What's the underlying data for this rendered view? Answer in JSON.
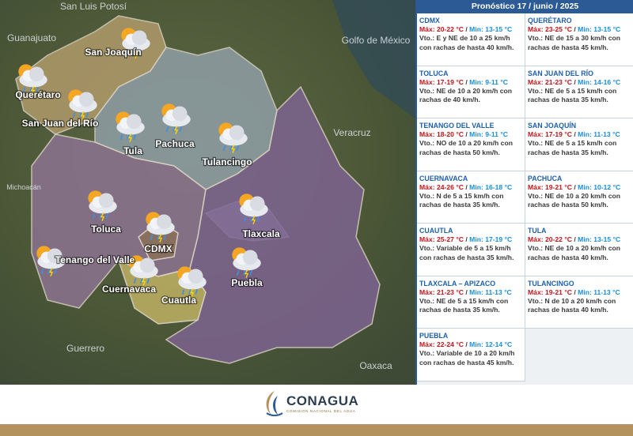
{
  "panel": {
    "title": "Pronóstico 17 / junio / 2025",
    "separator": "/",
    "forecasts": [
      {
        "city": "CDMX",
        "max": "Máx: 20-22 °C",
        "min": "Min: 13-15 °C",
        "wind": "Vto.: E y NE de 10 a 25 km/h con rachas de hasta 40 km/h."
      },
      {
        "city": "QUERÉTARO",
        "max": "Máx: 23-25 °C",
        "min": "Min: 13-15 °C",
        "wind": "Vto.: NE de 15 a 30 km/h con rachas de hasta 45 km/h."
      },
      {
        "city": "TOLUCA",
        "max": "Máx: 17-19 °C",
        "min": "Min: 9-11 °C",
        "wind": "Vto.: NE de 10 a 20 km/h con rachas de 40 km/h."
      },
      {
        "city": "SAN JUAN DEL RÍO",
        "max": "Máx: 21-23 °C",
        "min": "Min: 14-16 °C",
        "wind": "Vto.: NE de 5 a 15 km/h con rachas de hasta 35 km/h."
      },
      {
        "city": "TENANGO DEL VALLE",
        "max": "Máx: 18-20 °C",
        "min": "Min: 9-11 °C",
        "wind": "Vto.: NO de 10 a 20 km/h con rachas de hasta 50 km/h."
      },
      {
        "city": "SAN JOAQUÍN",
        "max": "Máx: 17-19 °C",
        "min": "Min: 11-13 °C",
        "wind": "Vto.: NE de 5 a 15 km/h con rachas de hasta 35 km/h."
      },
      {
        "city": "CUERNAVACA",
        "max": "Máx: 24-26 °C",
        "min": "Min: 16-18 °C",
        "wind": "Vto.: N de 5 a 15 km/h con rachas de hasta 35 km/h."
      },
      {
        "city": "PACHUCA",
        "max": "Máx: 19-21 °C",
        "min": "Min: 10-12 °C",
        "wind": "Vto.: NE de 10 a 20 km/h con rachas de hasta 50 km/h."
      },
      {
        "city": "CUAUTLA",
        "max": "Máx: 25-27 °C",
        "min": "Min: 17-19 °C",
        "wind": "Vto.: Variable de 5 a 15 km/h con rachas de hasta 35 km/h."
      },
      {
        "city": "TULA",
        "max": "Máx: 20-22 °C",
        "min": "Min: 13-15 °C",
        "wind": "Vto.: NE de 10 a 20 km/h con rachas de hasta 40 km/h."
      },
      {
        "city": "TLAXCALA – APIZACO",
        "max": "Máx: 21-23 °C",
        "min": "Min: 11-13 °C",
        "wind": "Vto.: NE de 5 a 15 km/h con rachas de hasta 35 km/h."
      },
      {
        "city": "TULANCINGO",
        "max": "Máx: 19-21 °C",
        "min": "Min: 11-13 °C",
        "wind": "Vto.: N de 10 a 20 km/h con rachas de hasta 40 km/h."
      },
      {
        "city": "PUEBLA",
        "max": "Máx: 22-24 °C",
        "min": "Min: 12-14 °C",
        "wind": "Vto.: Variable de 10 a 20 km/h con rachas de hasta 45 km/h."
      }
    ]
  },
  "map": {
    "regions": [
      "San Luis Potosí",
      "Guanajuato",
      "Golfo de México",
      "Veracruz",
      "Michoacán",
      "Guerrero",
      "Oaxaca"
    ],
    "cities": [
      "San Joaquín",
      "Querétaro",
      "San Juan del Río",
      "Tula",
      "Pachuca",
      "Tulancingo",
      "Toluca",
      "CDMX",
      "Tlaxcala",
      "Tenango del Valle",
      "Cuernavaca",
      "Cuautla",
      "Puebla"
    ]
  },
  "logo": {
    "name": "CONAGUA",
    "subtitle": "COMISIÓN NACIONAL DEL AGUA"
  }
}
